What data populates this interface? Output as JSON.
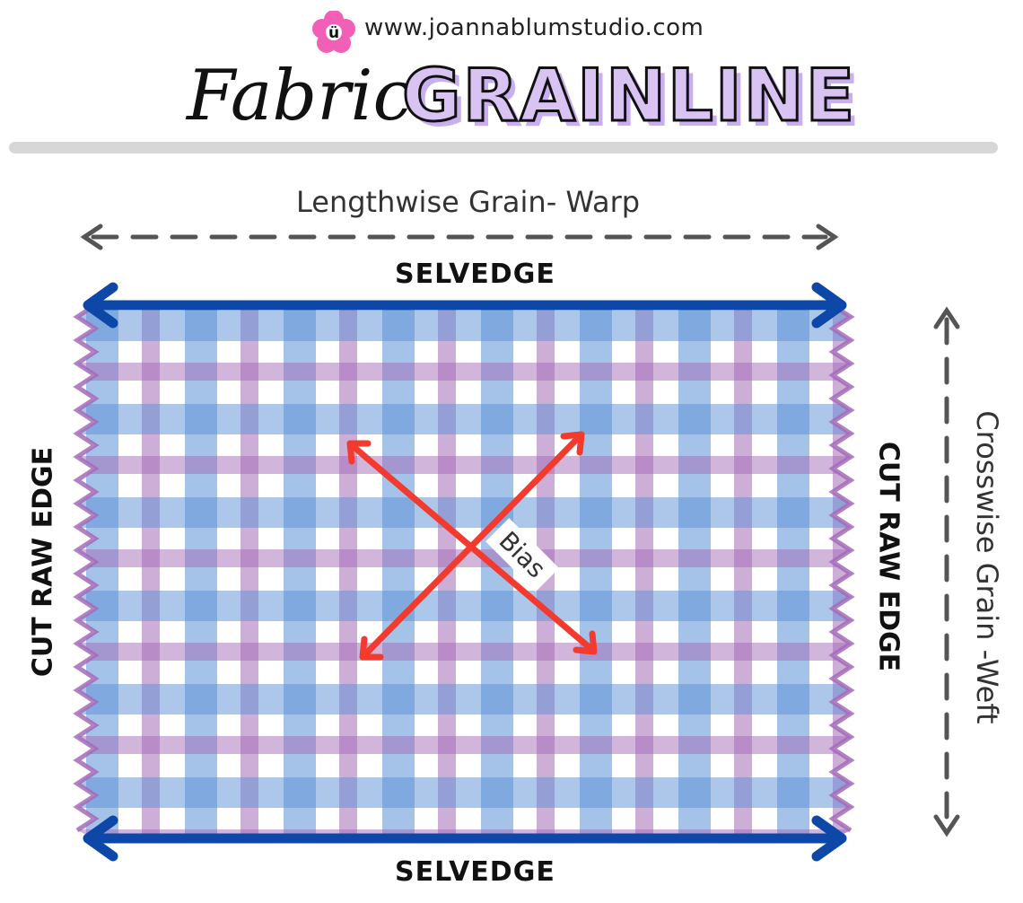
{
  "header": {
    "logo_letter": "ü",
    "site_url": "www.joannablumstudio.com",
    "title_word_1": "Fabric",
    "title_word_2": "GRAINLINE"
  },
  "diagram": {
    "lengthwise_label": "Lengthwise Grain- Warp",
    "crosswise_label": "Crosswise Grain -Weft",
    "selvedge_top": "SELVEDGE",
    "selvedge_bottom": "SELVEDGE",
    "cut_edge_left": "CUT RAW EDGE",
    "cut_edge_right": "CUT RAW EDGE",
    "bias_label": "Bias"
  },
  "colors": {
    "selvedge_arrow": "#0d47a8",
    "bias_arrow": "#f23a2e",
    "grain_arrow": "#555555",
    "plaid_blue": "#5b8fd6",
    "plaid_purple": "#a36bb7",
    "title_fill": "#d8c3f3",
    "logo_pink": "#f25fb7"
  }
}
